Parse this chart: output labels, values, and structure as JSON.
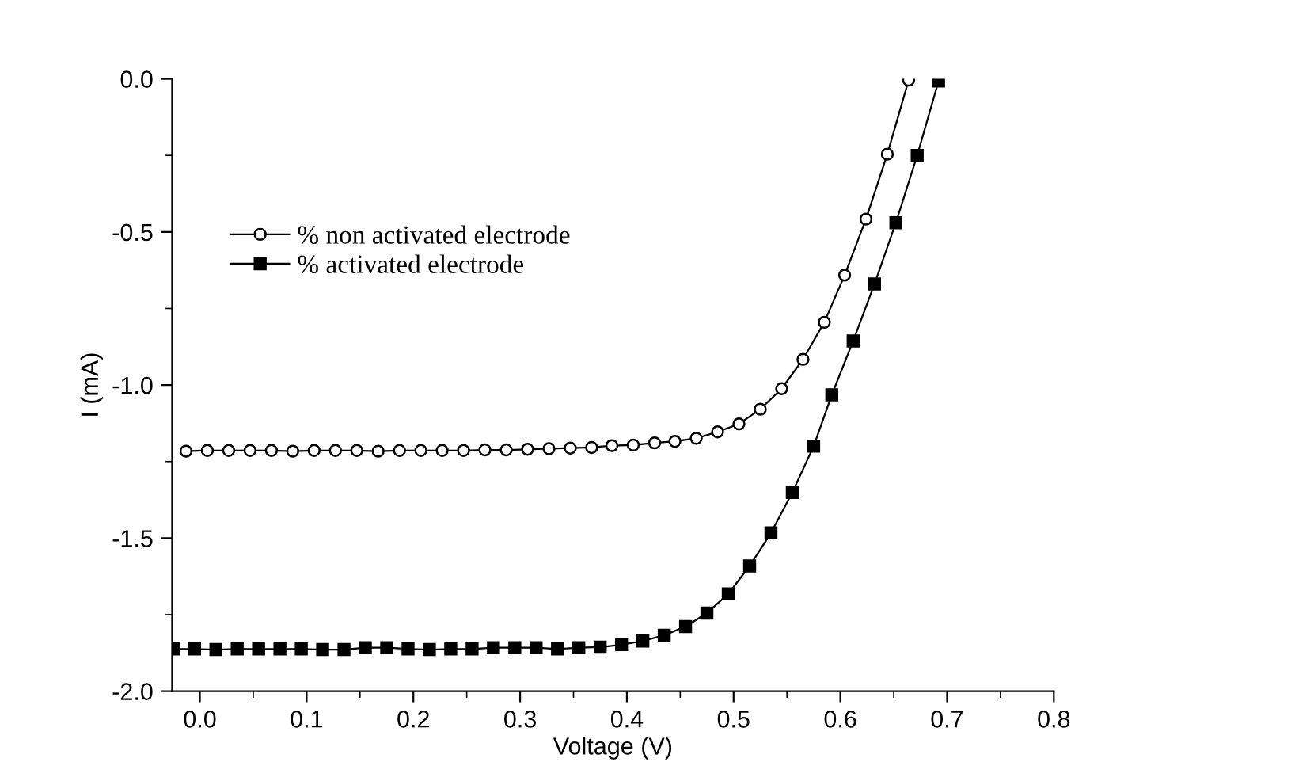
{
  "chart_data": {
    "type": "line",
    "xlabel": "Voltage (V)",
    "ylabel": "I (mA)",
    "xlim": [
      -0.026,
      0.8
    ],
    "ylim": [
      -2.0,
      0.0
    ],
    "xticks": [
      {
        "value": 0.0,
        "label": "0.0"
      },
      0.1,
      0.2,
      0.3,
      0.4,
      0.5,
      0.6,
      0.7,
      0.8
    ],
    "yticks": [
      {
        "value": -2.0,
        "label": "-2.0"
      },
      -1.5,
      {
        "value": -1.0,
        "label": "-1.0"
      },
      -0.5,
      {
        "value": 0.0,
        "label": "0.0"
      }
    ],
    "grid": false,
    "legend": "top left",
    "line_style": "solid",
    "series": [
      {
        "name": "% non activated electrode",
        "color": "#000000",
        "marker": "circle",
        "x": [
          -0.013,
          0.007,
          0.027,
          0.047,
          0.067,
          0.087,
          0.107,
          0.127,
          0.147,
          0.167,
          0.187,
          0.207,
          0.227,
          0.247,
          0.267,
          0.287,
          0.307,
          0.327,
          0.347,
          0.367,
          0.386,
          0.406,
          0.426,
          0.445,
          0.465,
          0.485,
          0.505,
          0.525,
          0.545,
          0.565,
          0.585,
          0.604,
          0.624,
          0.644,
          0.664
        ],
        "values": [
          -1.216,
          -1.214,
          -1.214,
          -1.214,
          -1.214,
          -1.216,
          -1.214,
          -1.214,
          -1.214,
          -1.216,
          -1.214,
          -1.214,
          -1.214,
          -1.214,
          -1.212,
          -1.212,
          -1.21,
          -1.208,
          -1.206,
          -1.204,
          -1.198,
          -1.196,
          -1.189,
          -1.184,
          -1.174,
          -1.153,
          -1.127,
          -1.079,
          -1.012,
          -0.916,
          -0.795,
          -0.641,
          -0.458,
          -0.246,
          -0.004
        ]
      },
      {
        "name": "% activated electrode",
        "color": "#000000",
        "marker": "square",
        "x": [
          -0.025,
          -0.005,
          0.015,
          0.035,
          0.055,
          0.075,
          0.095,
          0.115,
          0.135,
          0.155,
          0.175,
          0.195,
          0.215,
          0.235,
          0.255,
          0.275,
          0.295,
          0.315,
          0.335,
          0.355,
          0.375,
          0.395,
          0.415,
          0.435,
          0.455,
          0.475,
          0.495,
          0.515,
          0.535,
          0.555,
          0.575,
          0.592,
          0.612,
          0.632,
          0.652,
          0.672,
          0.692
        ],
        "values": [
          -1.862,
          -1.862,
          -1.864,
          -1.862,
          -1.862,
          -1.862,
          -1.862,
          -1.864,
          -1.864,
          -1.858,
          -1.858,
          -1.862,
          -1.864,
          -1.862,
          -1.862,
          -1.858,
          -1.858,
          -1.858,
          -1.862,
          -1.858,
          -1.856,
          -1.848,
          -1.836,
          -1.817,
          -1.789,
          -1.745,
          -1.682,
          -1.591,
          -1.483,
          -1.351,
          -1.2,
          -1.032,
          -0.856,
          -0.67,
          -0.47,
          -0.25,
          -0.007
        ]
      }
    ]
  }
}
